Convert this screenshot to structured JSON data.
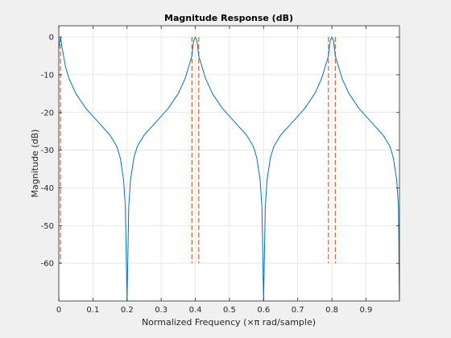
{
  "chart_data": {
    "type": "line",
    "title": "Magnitude Response (dB)",
    "xlabel": "Normalized Frequency (×π rad/sample)",
    "ylabel": "Magnitude (dB)",
    "xlim": [
      0,
      0.998
    ],
    "ylim": [
      -70,
      3
    ],
    "grid": true,
    "x_ticks": [
      0,
      0.1,
      0.2,
      0.3,
      0.4,
      0.5,
      0.6,
      0.7,
      0.8,
      0.9
    ],
    "x_tick_labels": [
      "0",
      "0.1",
      "0.2",
      "0.3",
      "0.4",
      "0.5",
      "0.6",
      "0.7",
      "0.8",
      "0.9"
    ],
    "y_ticks": [
      0,
      -10,
      -20,
      -30,
      -40,
      -50,
      -60
    ],
    "y_tick_labels": [
      "0",
      "-10",
      "-20",
      "-30",
      "-40",
      "-50",
      "-60"
    ],
    "colors": {
      "response": "#0072BD",
      "mask": "#D95319",
      "grid": "#dfdfdf",
      "axes": "#262626",
      "plot_bg": "#ffffff",
      "figure_bg": "#f0f0f0"
    },
    "series": [
      {
        "style": "solid",
        "peaks": [
          0.005,
          0.4,
          0.8
        ],
        "nulls": [
          0.2,
          0.6,
          0.998
        ],
        "x": [
          0.0,
          0.005,
          0.01,
          0.02,
          0.03,
          0.05,
          0.08,
          0.1,
          0.12,
          0.15,
          0.17,
          0.18,
          0.19,
          0.195,
          0.2,
          0.205,
          0.21,
          0.22,
          0.23,
          0.25,
          0.28,
          0.3,
          0.32,
          0.35,
          0.37,
          0.39,
          0.395,
          0.4,
          0.405,
          0.41,
          0.43,
          0.45,
          0.48,
          0.5,
          0.52,
          0.55,
          0.57,
          0.58,
          0.59,
          0.595,
          0.6,
          0.605,
          0.61,
          0.62,
          0.63,
          0.65,
          0.68,
          0.7,
          0.72,
          0.75,
          0.77,
          0.79,
          0.795,
          0.8,
          0.805,
          0.81,
          0.83,
          0.85,
          0.88,
          0.9,
          0.92,
          0.95,
          0.97,
          0.98,
          0.99,
          0.995,
          0.998
        ],
        "y": [
          -3,
          0,
          -3,
          -8,
          -11,
          -15,
          -19,
          -21,
          -23,
          -26,
          -29,
          -32,
          -38,
          -45,
          -70,
          -45,
          -38,
          -32,
          -29,
          -26,
          -23,
          -21,
          -19,
          -15,
          -11,
          -5,
          -1,
          0,
          -1,
          -5,
          -11,
          -15,
          -19,
          -21,
          -23,
          -26,
          -29,
          -32,
          -38,
          -45,
          -70,
          -45,
          -38,
          -32,
          -29,
          -26,
          -23,
          -21,
          -19,
          -15,
          -11,
          -5,
          -1,
          0,
          -1,
          -5,
          -11,
          -15,
          -19,
          -21,
          -23,
          -26,
          -29,
          -32,
          -38,
          -45,
          -70
        ]
      },
      {
        "style": "dashed",
        "segments": [
          {
            "x": 0.005,
            "y": [
              0,
              -60
            ]
          },
          {
            "x": 0.39,
            "y": [
              0,
              -60
            ]
          },
          {
            "x": 0.41,
            "y": [
              0,
              -60
            ]
          },
          {
            "x": 0.79,
            "y": [
              0,
              -60
            ]
          },
          {
            "x": 0.81,
            "y": [
              0,
              -60
            ]
          }
        ]
      }
    ]
  }
}
